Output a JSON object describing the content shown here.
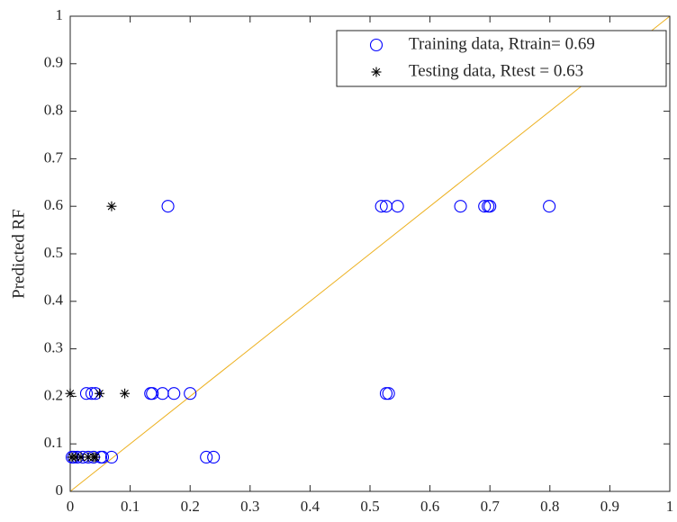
{
  "chart_data": {
    "type": "scatter",
    "ylabel": "Predicted RF",
    "xlim": [
      0,
      1
    ],
    "ylim": [
      0,
      1
    ],
    "xticks": [
      0,
      0.1,
      0.2,
      0.3,
      0.4,
      0.5,
      0.6,
      0.7,
      0.8,
      0.9,
      1
    ],
    "yticks": [
      0,
      0.1,
      0.2,
      0.3,
      0.4,
      0.5,
      0.6,
      0.7,
      0.8,
      0.9,
      1
    ],
    "identity_line_color": "#edb120",
    "legend": "upper right",
    "series": [
      {
        "name": "Training data, Rtrain= 0.69",
        "color": "#0000ff",
        "marker": "circle",
        "x": [
          0.163,
          0.519,
          0.527,
          0.546,
          0.651,
          0.691,
          0.697,
          0.7,
          0.799,
          0.027,
          0.036,
          0.042,
          0.134,
          0.137,
          0.154,
          0.173,
          0.2,
          0.527,
          0.531,
          0.003,
          0.006,
          0.012,
          0.021,
          0.03,
          0.039,
          0.051,
          0.054,
          0.069,
          0.227,
          0.239
        ],
        "y": [
          0.6,
          0.6,
          0.6,
          0.6,
          0.6,
          0.6,
          0.6,
          0.6,
          0.6,
          0.206,
          0.206,
          0.206,
          0.206,
          0.206,
          0.206,
          0.206,
          0.206,
          0.206,
          0.206,
          0.072,
          0.072,
          0.072,
          0.072,
          0.072,
          0.072,
          0.072,
          0.072,
          0.072,
          0.072,
          0.072
        ]
      },
      {
        "name": "Testing data, Rtest = 0.63",
        "color": "#000000",
        "marker": "asterisk",
        "x": [
          0.069,
          0,
          0.049,
          0.091,
          0.003,
          0.009,
          0.018,
          0.03,
          0.039,
          0.042
        ],
        "y": [
          0.6,
          0.206,
          0.206,
          0.206,
          0.072,
          0.072,
          0.072,
          0.072,
          0.072,
          0.072
        ]
      }
    ]
  }
}
